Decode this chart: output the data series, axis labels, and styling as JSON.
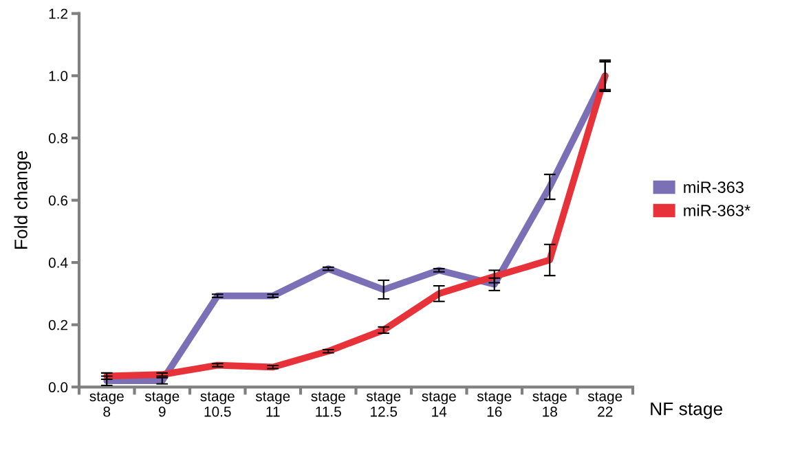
{
  "chart_data": {
    "type": "line",
    "xlabel": "NF stage",
    "ylabel": "Fold change",
    "categories": [
      "stage\n8",
      "stage\n9",
      "stage\n10.5",
      "stage\n11",
      "stage\n11.5",
      "stage\n12.5",
      "stage\n14",
      "stage\n16",
      "stage\n18",
      "stage\n22"
    ],
    "series": [
      {
        "name": "miR-363",
        "color": "#7b6fb5",
        "values": [
          0.02,
          0.02,
          0.293,
          0.293,
          0.38,
          0.313,
          0.375,
          0.33,
          0.643,
          1.0
        ],
        "errors": [
          0.015,
          0.01,
          0.005,
          0.005,
          0.005,
          0.03,
          0.005,
          0.02,
          0.04,
          0.05
        ]
      },
      {
        "name": "miR-363*",
        "color": "#e8323a",
        "values": [
          0.035,
          0.04,
          0.07,
          0.064,
          0.115,
          0.183,
          0.3,
          0.355,
          0.408,
          1.0
        ],
        "errors": [
          0.01,
          0.005,
          0.005,
          0.005,
          0.005,
          0.01,
          0.025,
          0.02,
          0.05,
          0.045
        ]
      }
    ],
    "ylim": [
      0,
      1.2
    ],
    "yticks": [
      {
        "value": 0,
        "label": "0.0"
      },
      {
        "value": 0.2,
        "label": "0.2"
      },
      {
        "value": 0.4,
        "label": "0.4"
      },
      {
        "value": 0.6,
        "label": "0.6"
      },
      {
        "value": 0.8,
        "label": "0.8"
      },
      {
        "value": 1.0,
        "label": "1.0"
      },
      {
        "value": 1.2,
        "label": "1.2"
      }
    ],
    "grid": false,
    "legend": "right",
    "marker": "none",
    "line_style": "solid"
  }
}
